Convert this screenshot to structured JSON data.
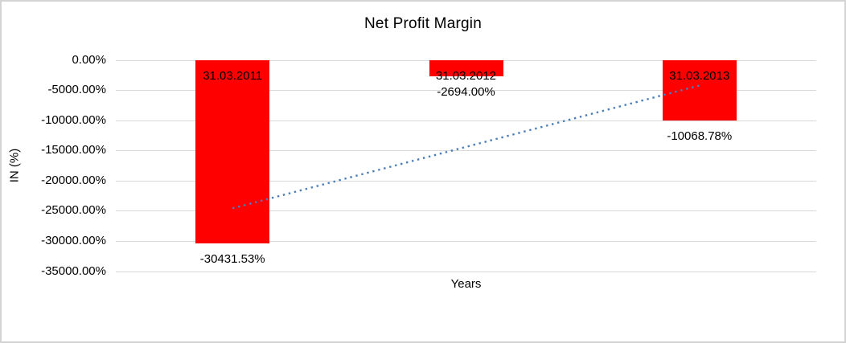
{
  "chart_data": {
    "type": "bar",
    "title": "Net Profit Margin",
    "xlabel": "Years",
    "ylabel": "IN (%)",
    "categories": [
      "31.03.2011",
      "31.03.2012",
      "31.03.2013"
    ],
    "values": [
      -30431.53,
      -2694.0,
      -10068.78
    ],
    "data_labels": [
      "-30431.53%",
      "-2694.00%",
      "-10068.78%"
    ],
    "ylim": [
      -35000,
      0
    ],
    "tick_values": [
      0,
      -5000,
      -10000,
      -15000,
      -20000,
      -25000,
      -30000,
      -35000
    ],
    "tick_labels": [
      "0.00%",
      "-5000.00%",
      "-10000.00%",
      "-15000.00%",
      "-20000.00%",
      "-25000.00%",
      "-30000.00%",
      "-35000.00%"
    ],
    "grid": true,
    "legend": "none",
    "colors": {
      "bar": "#ff0000",
      "trendline": "#4a7ebb",
      "gridline": "#d9d9d9",
      "text": "#000000",
      "frame_border": "#d4d4d4"
    },
    "trendline": {
      "type": "linear",
      "style": "dotted"
    }
  }
}
